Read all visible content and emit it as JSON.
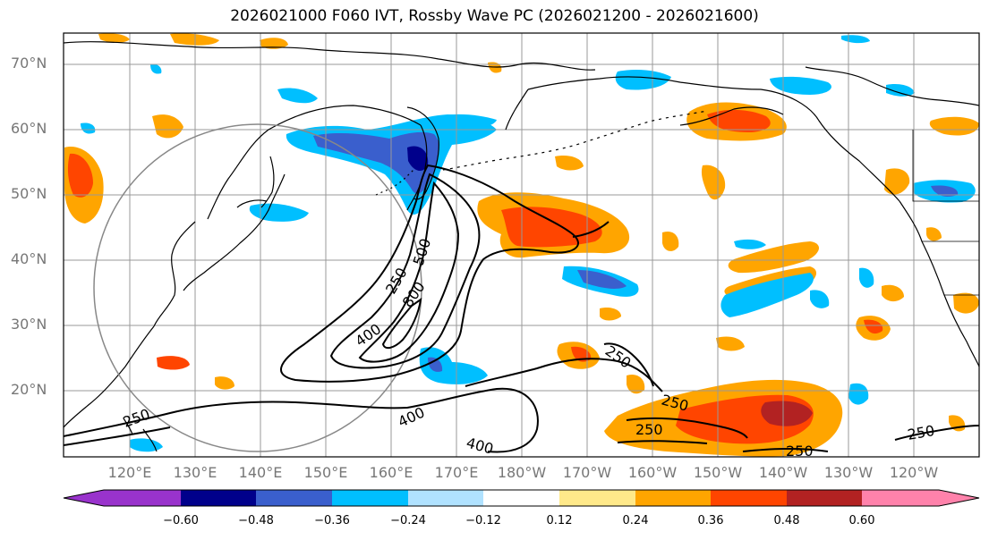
{
  "title": "2026021000 F060 IVT, Rossby Wave PC (2026021200 - 2026021600)",
  "lat_labels": [
    "70°N",
    "60°N",
    "50°N",
    "40°N",
    "30°N",
    "20°N"
  ],
  "lon_labels": [
    "120°E",
    "130°E",
    "140°E",
    "150°E",
    "160°E",
    "170°E",
    "180°W",
    "170°W",
    "160°W",
    "150°W",
    "140°W",
    "130°W",
    "120°W"
  ],
  "contour_labels": [
    "250",
    "500",
    "800",
    "400",
    "250",
    "250",
    "250",
    "400",
    "400",
    "250",
    "250",
    "250"
  ],
  "colorbar": {
    "ticks": [
      "−0.60",
      "−0.48",
      "−0.36",
      "−0.24",
      "−0.12",
      "0.12",
      "0.24",
      "0.36",
      "0.48",
      "0.60"
    ],
    "colors": [
      "#9933cc",
      "#00008b",
      "#3a5fcd",
      "#00bfff",
      "#b0e2ff",
      "#ffffff",
      "#ffe98a",
      "#ffa500",
      "#ff4500",
      "#b22222",
      "#ff82ab"
    ]
  }
}
